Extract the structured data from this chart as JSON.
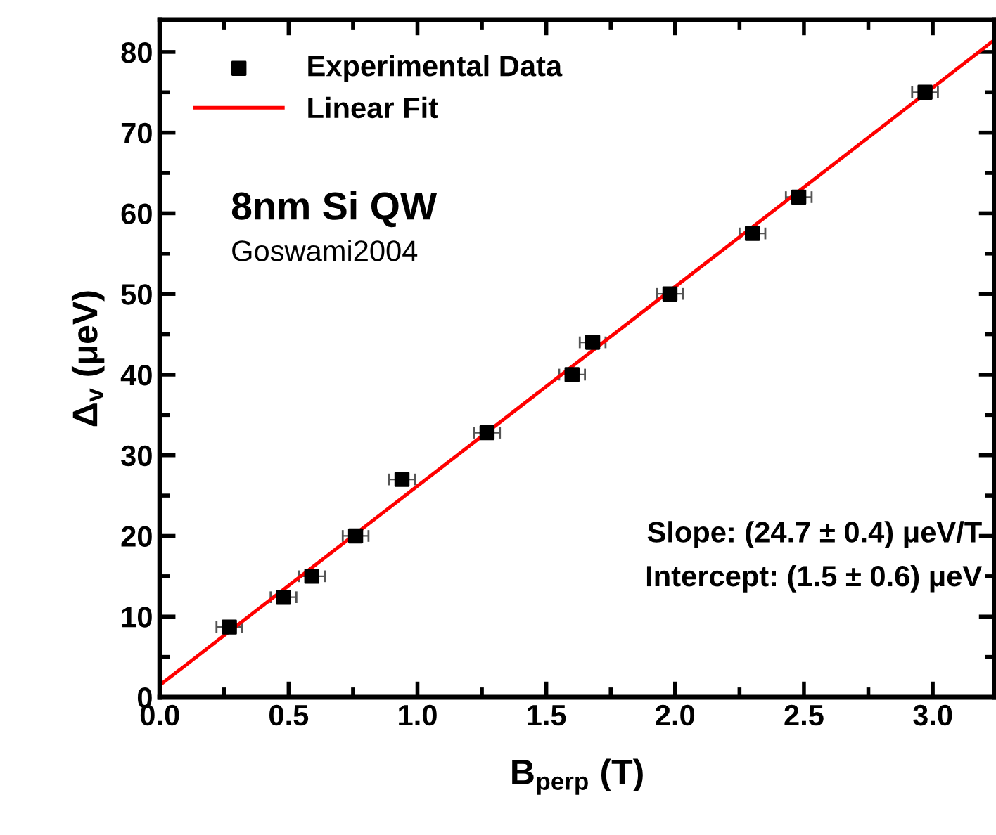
{
  "chart_data": {
    "type": "scatter",
    "xlabel": "B$_{perp}$ (T)",
    "ylabel": "Δ$_{v}$ (μeV)",
    "xlim": [
      0,
      3.24
    ],
    "ylim": [
      0,
      84
    ],
    "xticks": [
      {
        "value": 0,
        "label": "0.0"
      },
      0.5,
      {
        "value": 1,
        "label": "1.0"
      },
      1.5,
      {
        "value": 2,
        "label": "2.0"
      },
      2.5,
      {
        "value": 3,
        "label": "3.0"
      }
    ],
    "yticks": [
      0,
      10,
      20,
      30,
      40,
      50,
      60,
      70,
      80
    ],
    "legend": "top left",
    "grid": false,
    "series": [
      {
        "name": "Experimental Data",
        "color": "#000000",
        "marker": "square",
        "x": [
          0.27,
          0.48,
          0.59,
          0.76,
          0.94,
          1.27,
          1.6,
          1.68,
          1.98,
          2.3,
          2.48,
          2.97
        ],
        "values": [
          8.7,
          12.4,
          15,
          20,
          27,
          32.8,
          40,
          44,
          50,
          57.5,
          62,
          75
        ],
        "xerrors": [
          0.05,
          0.05,
          0.05,
          0.05,
          0.05,
          0.05,
          0.05,
          0.05,
          0.05,
          0.05,
          0.05,
          0.05
        ]
      },
      {
        "name": "Linear Fit",
        "type": "line",
        "color": "#ff0000",
        "marker": "none",
        "line_style": "solid",
        "x": [
          0,
          3.24
        ],
        "values": [
          1.5,
          81.5
        ]
      }
    ],
    "annotations": [
      "8nm Si QW",
      "Goswami2004",
      "Slope: (24.7 ± 0.4) μeV/T",
      "Intercept: (1.5 ± 0.6) μeV"
    ]
  }
}
